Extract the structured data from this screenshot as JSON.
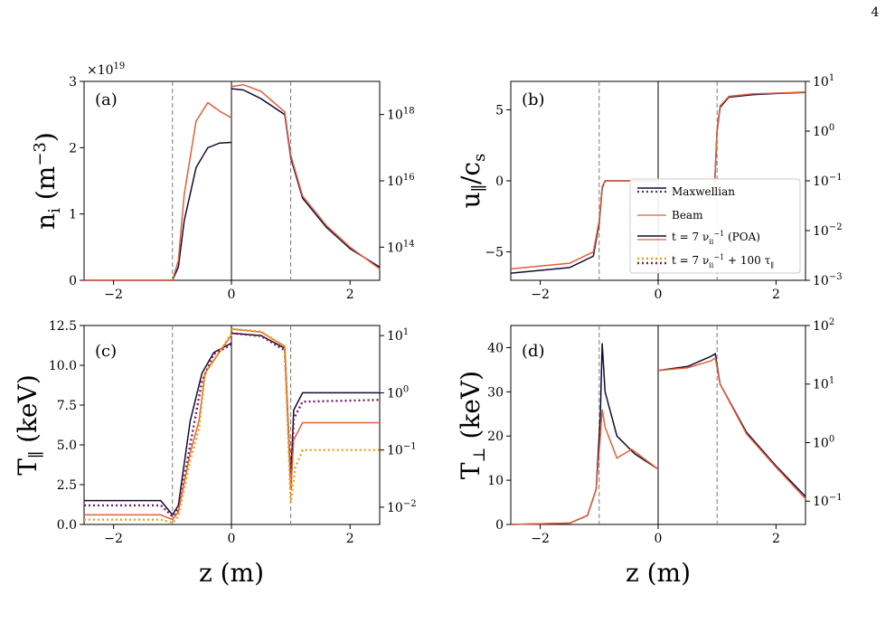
{
  "page_number": "4",
  "colors": {
    "maxwellian_solid": "#140b34",
    "maxwellian_dotted": "#7a1e5c",
    "beam_solid": "#e0603a",
    "beam_dotted": "#f0a30a"
  },
  "legend": {
    "entries": [
      "Maxwellian",
      "Beam",
      "t = 7 ν_ii^{-1} (POA)",
      "t = 7 ν_ii^{-1} + 100 τ_∥"
    ]
  },
  "chart_data": [
    {
      "type": "line",
      "panel": "(a)",
      "ylabel": "n_i (m^-3)",
      "xlabel": "",
      "offset_text": "×10^19",
      "left_axis": {
        "xlim": [
          -2.5,
          0
        ],
        "ylim": [
          0,
          3
        ],
        "xticks": [
          "−2"
        ],
        "yticks": [
          "0",
          "1",
          "2",
          "3"
        ]
      },
      "right_axis": {
        "xlim": [
          0,
          2.5
        ],
        "scale": "log",
        "ylim": [
          10000000000000.0,
          1e+19
        ],
        "xticks": [
          "0",
          "2"
        ],
        "yticks": [
          "10^14",
          "10^16",
          "10^18"
        ]
      },
      "series": [
        {
          "name": "Maxwellian",
          "color_key": "maxwellian_solid",
          "left_x": [
            -2.5,
            -1.0,
            -0.9,
            -0.8,
            -0.6,
            -0.4,
            -0.2,
            0
          ],
          "left_y": [
            0,
            0,
            0.2,
            0.9,
            1.7,
            2.0,
            2.07,
            2.08
          ],
          "right_x": [
            0,
            0.2,
            0.5,
            0.9,
            1.0,
            1.2,
            1.6,
            2.0,
            2.5
          ],
          "right_y": [
            6e+18,
            5.5e+18,
            3e+18,
            1e+18,
            5e+16,
            3000000000000000.0,
            400000000000000.0,
            90000000000000.0,
            25000000000000.0
          ]
        },
        {
          "name": "Beam",
          "color_key": "beam_solid",
          "left_x": [
            -2.5,
            -1.0,
            -0.9,
            -0.8,
            -0.6,
            -0.4,
            -0.2,
            0
          ],
          "left_y": [
            0,
            0,
            0.3,
            1.3,
            2.4,
            2.68,
            2.55,
            2.45
          ],
          "right_x": [
            0,
            0.2,
            0.5,
            0.9,
            1.0,
            1.2,
            1.6,
            2.0,
            2.5
          ],
          "right_y": [
            7e+18,
            8e+18,
            5e+18,
            1.2e+18,
            6e+16,
            3500000000000000.0,
            450000000000000.0,
            100000000000000.0,
            22000000000000.0
          ]
        }
      ]
    },
    {
      "type": "line",
      "panel": "(b)",
      "ylabel": "u_∥ / c_s",
      "xlabel": "",
      "left_axis": {
        "xlim": [
          -2.5,
          0
        ],
        "ylim": [
          -7,
          7
        ],
        "xticks": [
          "−2"
        ],
        "yticks": [
          "−5",
          "0",
          "5"
        ]
      },
      "right_axis": {
        "xlim": [
          0,
          2.5
        ],
        "scale": "log",
        "ylim": [
          0.001,
          10
        ],
        "xticks": [
          "0",
          "2"
        ],
        "yticks": [
          "10^-3",
          "10^-2",
          "10^-1",
          "10^0",
          "10^1"
        ]
      },
      "series": [
        {
          "name": "Maxwellian",
          "color_key": "maxwellian_solid",
          "left_x": [
            -2.5,
            -1.5,
            -1.1,
            -1.0,
            -0.95,
            -0.9,
            0
          ],
          "left_y": [
            -6.5,
            -6.1,
            -5.3,
            -3.0,
            -0.5,
            0,
            0
          ],
          "right_x": [
            0.95,
            1.0,
            1.05,
            1.2,
            1.6,
            2.0,
            2.5
          ],
          "right_y": [
            0.05,
            1.0,
            3.0,
            4.8,
            5.4,
            5.7,
            6.0
          ]
        },
        {
          "name": "Beam",
          "color_key": "beam_solid",
          "left_x": [
            -2.5,
            -1.5,
            -1.1,
            -1.0,
            -0.95,
            -0.9,
            0
          ],
          "left_y": [
            -6.2,
            -5.8,
            -5.0,
            -2.8,
            -0.4,
            0,
            0
          ],
          "right_x": [
            0.95,
            1.0,
            1.05,
            1.2,
            1.6,
            2.0,
            2.5
          ],
          "right_y": [
            0.05,
            1.1,
            3.2,
            5.0,
            5.6,
            5.8,
            6.1
          ]
        }
      ]
    },
    {
      "type": "line",
      "panel": "(c)",
      "ylabel": "T_∥ (keV)",
      "xlabel": "z (m)",
      "left_axis": {
        "xlim": [
          -2.5,
          0
        ],
        "ylim": [
          0,
          12.5
        ],
        "xticks": [
          "−2"
        ],
        "yticks": [
          "0.0",
          "2.5",
          "5.0",
          "7.5",
          "10.0",
          "12.5"
        ]
      },
      "right_axis": {
        "xlim": [
          0,
          2.5
        ],
        "scale": "log",
        "ylim": [
          0.005,
          15
        ],
        "xticks": [
          "0",
          "2"
        ],
        "yticks": [
          "10^-2",
          "10^-1",
          "10^0",
          "10^1"
        ]
      },
      "series": [
        {
          "name": "Maxwellian t=7/ν (POA)",
          "color_key": "maxwellian_solid",
          "left_x": [
            -2.5,
            -1.2,
            -1.0,
            -0.9,
            -0.7,
            -0.5,
            -0.3,
            0
          ],
          "left_y": [
            1.5,
            1.5,
            0.6,
            1.2,
            6.5,
            9.5,
            10.8,
            11.4
          ],
          "right_x": [
            0,
            0.5,
            0.9,
            1.0,
            1.05,
            1.2,
            2.5
          ],
          "right_y": [
            11.0,
            10.0,
            6.0,
            0.03,
            0.5,
            1.0,
            1.0
          ]
        },
        {
          "name": "Maxwellian t=7/ν+100τ",
          "color_key": "maxwellian_dotted",
          "dotted": true,
          "left_x": [
            -2.5,
            -1.2,
            -1.0,
            -0.9,
            -0.7,
            -0.5,
            -0.3,
            0
          ],
          "left_y": [
            1.2,
            1.2,
            0.5,
            1.0,
            5.0,
            9.0,
            10.7,
            11.3
          ],
          "right_x": [
            0,
            0.5,
            0.9,
            1.0,
            1.05,
            1.2,
            2.5
          ],
          "right_y": [
            11.0,
            9.8,
            5.5,
            0.02,
            0.35,
            0.7,
            0.75
          ]
        },
        {
          "name": "Beam t=7/ν (POA)",
          "color_key": "beam_solid",
          "left_x": [
            -2.5,
            -1.2,
            -1.0,
            -0.9,
            -0.7,
            -0.55,
            -0.45,
            0
          ],
          "left_y": [
            0.6,
            0.6,
            0.3,
            0.8,
            4.5,
            6.5,
            9.5,
            11.9
          ],
          "right_x": [
            0,
            0.5,
            0.9,
            1.0,
            1.05,
            1.2,
            2.5
          ],
          "right_y": [
            13.0,
            11.5,
            6.5,
            0.02,
            0.15,
            0.3,
            0.3
          ]
        },
        {
          "name": "Beam t=7/ν+100τ",
          "color_key": "beam_dotted",
          "dotted": true,
          "left_x": [
            -2.5,
            -1.2,
            -1.0,
            -0.9,
            -0.7,
            -0.55,
            -0.45,
            0
          ],
          "left_y": [
            0.3,
            0.3,
            0.1,
            0.5,
            4.0,
            6.0,
            9.5,
            12.0
          ],
          "right_x": [
            0,
            0.5,
            0.9,
            1.0,
            1.08,
            1.2,
            2.5
          ],
          "right_y": [
            13.0,
            11.8,
            6.5,
            0.012,
            0.05,
            0.1,
            0.1
          ]
        }
      ]
    },
    {
      "type": "line",
      "panel": "(d)",
      "ylabel": "T_⊥ (keV)",
      "xlabel": "z (m)",
      "left_axis": {
        "xlim": [
          -2.5,
          0
        ],
        "ylim": [
          0,
          45
        ],
        "xticks": [
          "−2"
        ],
        "yticks": [
          "0",
          "10",
          "20",
          "30",
          "40"
        ]
      },
      "right_axis": {
        "xlim": [
          0,
          2.5
        ],
        "scale": "log",
        "ylim": [
          0.04,
          100
        ],
        "xticks": [
          "0",
          "2"
        ],
        "yticks": [
          "10^-1",
          "10^0",
          "10^1",
          "10^2"
        ]
      },
      "series": [
        {
          "name": "Maxwellian",
          "color_key": "maxwellian_solid",
          "left_x": [
            -2.5,
            -1.5,
            -1.2,
            -1.05,
            -0.98,
            -0.95,
            -0.9,
            -0.7,
            -0.4,
            0
          ],
          "left_y": [
            0,
            0.3,
            2.0,
            8.0,
            25.0,
            41.0,
            30.0,
            20.0,
            16.0,
            12.5
          ],
          "right_x": [
            0,
            0.5,
            0.9,
            0.97,
            1.05,
            1.5,
            2.0,
            2.5
          ],
          "right_y": [
            17.0,
            20.0,
            30.0,
            33.0,
            10.0,
            1.5,
            0.4,
            0.12
          ]
        },
        {
          "name": "Beam",
          "color_key": "beam_solid",
          "left_x": [
            -2.5,
            -1.5,
            -1.2,
            -1.05,
            -0.98,
            -0.95,
            -0.9,
            -0.7,
            -0.45,
            0
          ],
          "left_y": [
            0,
            0.3,
            2.0,
            8.0,
            20.0,
            26.0,
            22.0,
            15.0,
            17.0,
            12.5
          ],
          "right_x": [
            0,
            0.5,
            0.9,
            0.97,
            1.05,
            1.5,
            2.0,
            2.5
          ],
          "right_y": [
            17.0,
            19.0,
            25.0,
            28.0,
            10.0,
            1.4,
            0.38,
            0.11
          ]
        }
      ]
    }
  ]
}
